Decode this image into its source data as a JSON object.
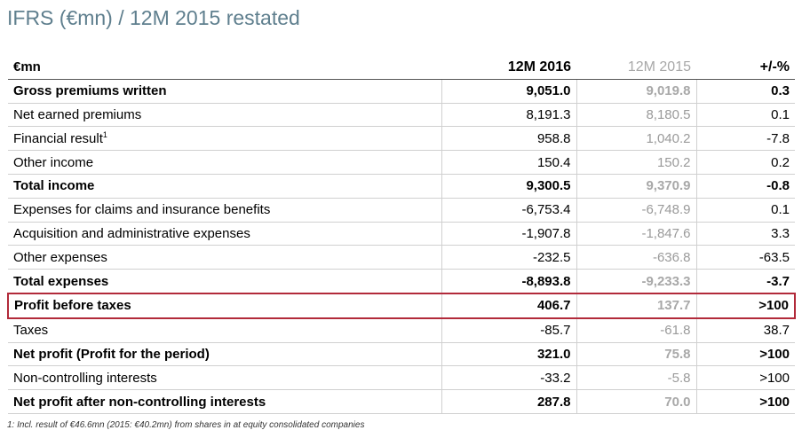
{
  "title": "IFRS (€mn) / 12M 2015 restated",
  "table": {
    "headers": {
      "label": "€mn",
      "current": "12M 2016",
      "previous": "12M 2015",
      "change": "+/-%"
    },
    "rows": [
      {
        "label": "Gross premiums written",
        "current": "9,051.0",
        "previous": "9,019.8",
        "change": "0.3",
        "bold": true
      },
      {
        "label": "Net earned premiums",
        "current": "8,191.3",
        "previous": "8,180.5",
        "change": "0.1"
      },
      {
        "label": "Financial result",
        "footnote_ref": "1",
        "current": "958.8",
        "previous": "1,040.2",
        "change": "-7.8"
      },
      {
        "label": "Other income",
        "current": "150.4",
        "previous": "150.2",
        "change": "0.2"
      },
      {
        "label": "Total income",
        "current": "9,300.5",
        "previous": "9,370.9",
        "change": "-0.8",
        "bold": true
      },
      {
        "label": "Expenses for claims and insurance benefits",
        "current": "-6,753.4",
        "previous": "-6,748.9",
        "change": "0.1"
      },
      {
        "label": "Acquisition and administrative expenses",
        "current": "-1,907.8",
        "previous": "-1,847.6",
        "change": "3.3"
      },
      {
        "label": "Other expenses",
        "current": "-232.5",
        "previous": "-636.8",
        "change": "-63.5"
      },
      {
        "label": "Total expenses",
        "current": "-8,893.8",
        "previous": "-9,233.3",
        "change": "-3.7",
        "bold": true
      },
      {
        "label": "Profit before taxes",
        "current": "406.7",
        "previous": "137.7",
        "change": ">100",
        "bold": true,
        "highlight": true
      },
      {
        "label": "Taxes",
        "current": "-85.7",
        "previous": "-61.8",
        "change": "38.7"
      },
      {
        "label": "Net profit (Profit for the period)",
        "current": "321.0",
        "previous": "75.8",
        "change": ">100",
        "bold": true
      },
      {
        "label": "Non-controlling interests",
        "current": "-33.2",
        "previous": "-5.8",
        "change": ">100"
      },
      {
        "label": "Net profit after non-controlling interests",
        "current": "287.8",
        "previous": "70.0",
        "change": ">100",
        "bold": true
      }
    ]
  },
  "footnote": "1: Incl. result of €46.6mn (2015: €40.2mn) from shares in at equity consolidated companies",
  "colors": {
    "title": "#5f7f8e",
    "highlight_border": "#b22a3a",
    "previous_year_text": "#9a9a9a"
  }
}
